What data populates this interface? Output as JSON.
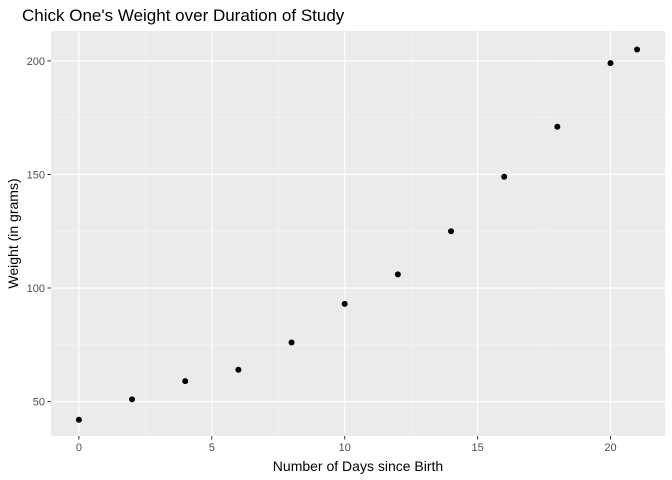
{
  "chart_data": {
    "type": "scatter",
    "title": "Chick One's Weight over Duration of Study",
    "xlabel": "Number of Days since Birth",
    "ylabel": "Weight (in grams)",
    "xlim": [
      -1.05,
      22.05
    ],
    "ylim": [
      34.85,
      213.15
    ],
    "x_ticks": [
      0,
      5,
      10,
      15,
      20
    ],
    "x_minor_ticks": [
      2.5,
      7.5,
      12.5,
      17.5
    ],
    "y_ticks": [
      50,
      100,
      150,
      200
    ],
    "y_minor_ticks": [
      75,
      125,
      175
    ],
    "grid": true,
    "legend": "none",
    "series": [
      {
        "x": [
          0,
          2,
          4,
          6,
          8,
          10,
          12,
          14,
          16,
          18,
          20,
          21
        ],
        "y": [
          42,
          51,
          59,
          64,
          76,
          93,
          106,
          125,
          149,
          171,
          199,
          205
        ]
      }
    ],
    "colors": {
      "panel_background": "#ebebeb",
      "grid_major": "#ffffff",
      "grid_minor": "#f5f5f5",
      "point": "#000000",
      "tick_mark": "#333333",
      "tick_label": "#4d4d4d"
    }
  }
}
